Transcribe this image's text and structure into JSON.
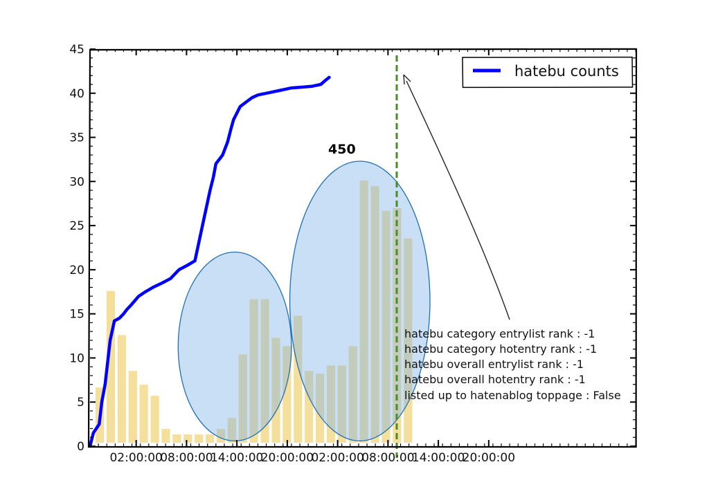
{
  "chart_data": {
    "type": "line",
    "title": "",
    "xlabel": "",
    "ylabel": "",
    "ylim": [
      0,
      45
    ],
    "yticks": [
      0,
      5,
      10,
      15,
      20,
      25,
      30,
      35,
      40,
      45
    ],
    "xlim_hours": [
      -3,
      62
    ],
    "xtick_labels": [
      "02:00:00",
      "08:00:00",
      "14:00:00",
      "20:00:00",
      "02:00:00",
      "08:00:00",
      "14:00:00",
      "20:00:00"
    ],
    "grid": false,
    "legend": {
      "position": "top-right",
      "entries": [
        "hatebu counts"
      ]
    },
    "series": [
      {
        "name": "hatebu counts",
        "color": "#0000ff",
        "x_hours": [
          -3,
          -2.6,
          -1.9,
          -1.6,
          -1.2,
          -0.6,
          -0.1,
          0.5,
          1.0,
          1.4,
          1.9,
          2.8,
          3.6,
          4.5,
          5.6,
          6.6,
          7.6,
          8.6,
          9.5,
          10.4,
          11.3,
          11.7,
          12.0,
          12.8,
          13.4,
          13.8,
          14.1,
          14.9,
          15.6,
          16.3,
          17.0,
          18.0,
          19.5,
          21.0,
          22.5,
          23.5,
          24.5,
          25.1,
          25.5
        ],
        "values": [
          0,
          1.5,
          2.5,
          5,
          7,
          12,
          14.2,
          14.5,
          15,
          15.5,
          16,
          17,
          17.5,
          18,
          18.5,
          19,
          20,
          20.5,
          21,
          25,
          29,
          30.5,
          32,
          33,
          34.5,
          36,
          37,
          38.5,
          39,
          39.5,
          39.8,
          40,
          40.3,
          40.6,
          40.7,
          40.8,
          41,
          41.5,
          41.8
        ]
      }
    ],
    "bars": {
      "color": "#f3d98b",
      "values": [
        0.2,
        0.55,
        0.39,
        0.26,
        0.21,
        0.17,
        0.05,
        0.03,
        0.03,
        0.03,
        0.03,
        0.05,
        0.09,
        0.32,
        0.52,
        0.52,
        0.38,
        0.35,
        0.46,
        0.26,
        0.25,
        0.28,
        0.28,
        0.35,
        0.95,
        0.93,
        0.84,
        0.85,
        0.74
      ]
    },
    "highlight_ellipses": [
      {
        "x_hours": [
          7.5,
          21.0
        ],
        "y": [
          0.6,
          22
        ]
      },
      {
        "x_hours": [
          20.8,
          37.5
        ],
        "y": [
          0.6,
          32.3
        ]
      }
    ],
    "annotations": {
      "callout": "450",
      "vline_label": "",
      "rank_lines": [
        "hatebu category entrylist rank  : -1",
        "hatebu category hotentry rank  : -1",
        "hatebu overall entrylist rank    : -1",
        "hatebu overall hotentry rank    : -1",
        "listed up to hatenablog toppage : False"
      ]
    }
  }
}
